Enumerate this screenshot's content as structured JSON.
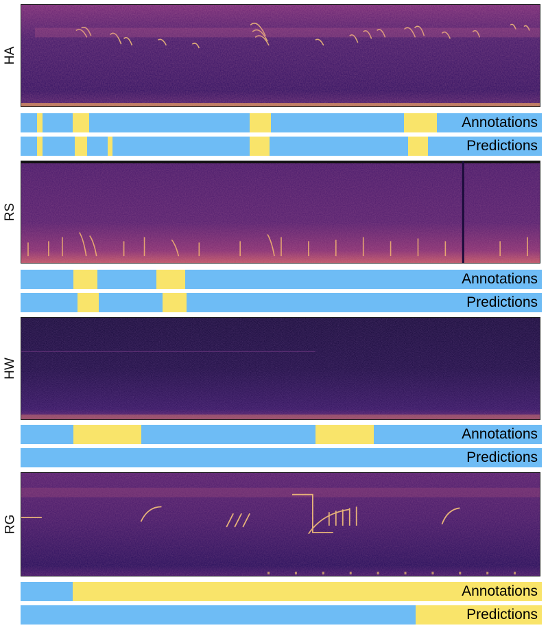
{
  "panels": [
    {
      "label": "HA",
      "annotations": {
        "label": "Annotations",
        "segments": [
          [
            0.031,
            0.042
          ],
          [
            0.1,
            0.132
          ],
          [
            0.439,
            0.48
          ],
          [
            0.736,
            0.799
          ]
        ]
      },
      "predictions": {
        "label": "Predictions",
        "segments": [
          [
            0.031,
            0.042
          ],
          [
            0.104,
            0.128
          ],
          [
            0.167,
            0.176
          ],
          [
            0.439,
            0.478
          ],
          [
            0.743,
            0.782
          ]
        ]
      }
    },
    {
      "label": "RS",
      "annotations": {
        "label": "Annotations",
        "segments": [
          [
            0.101,
            0.148
          ],
          [
            0.261,
            0.316
          ]
        ]
      },
      "predictions": {
        "label": "Predictions",
        "segments": [
          [
            0.109,
            0.15
          ],
          [
            0.273,
            0.318
          ]
        ]
      }
    },
    {
      "label": "HW",
      "annotations": {
        "label": "Annotations",
        "segments": [
          [
            0.101,
            0.232
          ],
          [
            0.566,
            0.678
          ]
        ]
      },
      "predictions": {
        "label": "Predictions",
        "segments": []
      }
    },
    {
      "label": "RG",
      "annotations": {
        "label": "Annotations",
        "segments": [
          [
            0.1,
            1.0
          ]
        ]
      },
      "predictions": {
        "label": "Predictions",
        "segments": [
          [
            0.758,
            1.0
          ]
        ]
      }
    }
  ],
  "colors": {
    "background_label": "#6ebcf5",
    "event_label": "#f9e46a"
  }
}
